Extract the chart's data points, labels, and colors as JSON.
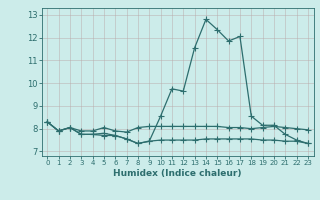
{
  "xlabel": "Humidex (Indice chaleur)",
  "xlim": [
    -0.5,
    23.5
  ],
  "ylim": [
    6.8,
    13.3
  ],
  "yticks": [
    7,
    8,
    9,
    10,
    11,
    12,
    13
  ],
  "xticks": [
    0,
    1,
    2,
    3,
    4,
    5,
    6,
    7,
    8,
    9,
    10,
    11,
    12,
    13,
    14,
    15,
    16,
    17,
    18,
    19,
    20,
    21,
    22,
    23
  ],
  "bg_color": "#ccecea",
  "line_color": "#2d6e6e",
  "line1_y": [
    8.3,
    7.9,
    8.05,
    7.75,
    7.75,
    7.8,
    7.7,
    7.55,
    7.35,
    7.45,
    8.55,
    9.75,
    9.65,
    11.55,
    12.8,
    12.35,
    11.85,
    12.05,
    8.55,
    8.15,
    8.15,
    7.75,
    7.5,
    7.35
  ],
  "line2_y": [
    8.3,
    7.9,
    8.05,
    7.9,
    7.9,
    8.05,
    7.9,
    7.85,
    8.05,
    8.1,
    8.1,
    8.1,
    8.1,
    8.1,
    8.1,
    8.1,
    8.05,
    8.05,
    8.0,
    8.05,
    8.1,
    8.05,
    8.0,
    7.95
  ],
  "line3_y": [
    8.3,
    7.9,
    8.05,
    7.75,
    7.75,
    7.7,
    7.7,
    7.55,
    7.35,
    7.45,
    7.5,
    7.5,
    7.5,
    7.5,
    7.55,
    7.55,
    7.55,
    7.55,
    7.55,
    7.5,
    7.5,
    7.45,
    7.45,
    7.35
  ]
}
